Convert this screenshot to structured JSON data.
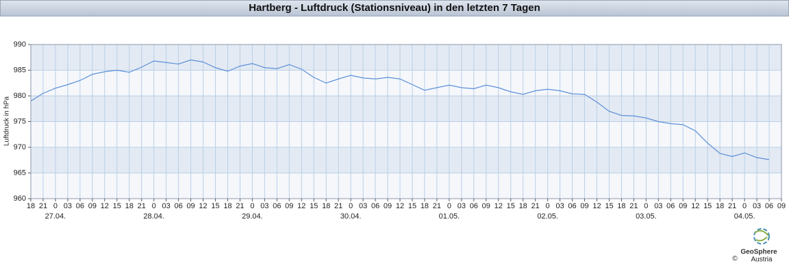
{
  "chart_data": {
    "type": "line",
    "title": "Hartberg - Luftdruck (Stationsniveau) in den letzten 7 Tagen",
    "y_label": "Luftdruck in hPa",
    "categories": [
      "18",
      "21",
      "0",
      "03",
      "06",
      "09",
      "12",
      "15",
      "18",
      "21",
      "0",
      "03",
      "06",
      "09",
      "12",
      "15",
      "18",
      "21",
      "0",
      "03",
      "06",
      "09",
      "12",
      "15",
      "18",
      "21",
      "0",
      "03",
      "06",
      "09",
      "12",
      "15",
      "18",
      "21",
      "0",
      "03",
      "06",
      "09",
      "12",
      "15",
      "18",
      "21",
      "0",
      "03",
      "06",
      "09",
      "12",
      "15",
      "18",
      "21",
      "0",
      "03",
      "06",
      "09",
      "12",
      "15",
      "18",
      "21",
      "0",
      "03",
      "06",
      "09"
    ],
    "day_labels": [
      "27.04.",
      "28.04.",
      "29.04.",
      "30.04.",
      "01.05.",
      "02.05.",
      "03.05.",
      "04.05."
    ],
    "series": [
      {
        "name": "Luftdruck",
        "color": "#5b8fd8",
        "values": [
          979,
          980.5,
          981.5,
          982.2,
          983,
          984.2,
          984.7,
          985,
          984.6,
          985.6,
          986.8,
          986.5,
          986.2,
          987,
          986.6,
          985.5,
          984.8,
          985.8,
          986.3,
          985.5,
          985.3,
          986.1,
          985.2,
          983.6,
          982.5,
          983.3,
          984,
          983.5,
          983.3,
          983.6,
          983.3,
          982.2,
          981.1,
          981.6,
          982.1,
          981.6,
          981.4,
          982.1,
          981.6,
          980.8,
          980.3,
          981,
          981.3,
          981,
          980.4,
          980.3,
          978.8,
          977,
          976.2,
          976.1,
          975.7,
          975,
          974.6,
          974.4,
          973.2,
          970.8,
          968.8,
          968.2,
          968.9,
          968,
          967.6,
          null
        ]
      }
    ],
    "ylim": [
      960,
      990
    ],
    "yticks": [
      960,
      965,
      970,
      975,
      980,
      985,
      990
    ],
    "grid": true
  },
  "logo": {
    "name": "GeoSphere",
    "country": "Austria",
    "copyright": "©"
  }
}
